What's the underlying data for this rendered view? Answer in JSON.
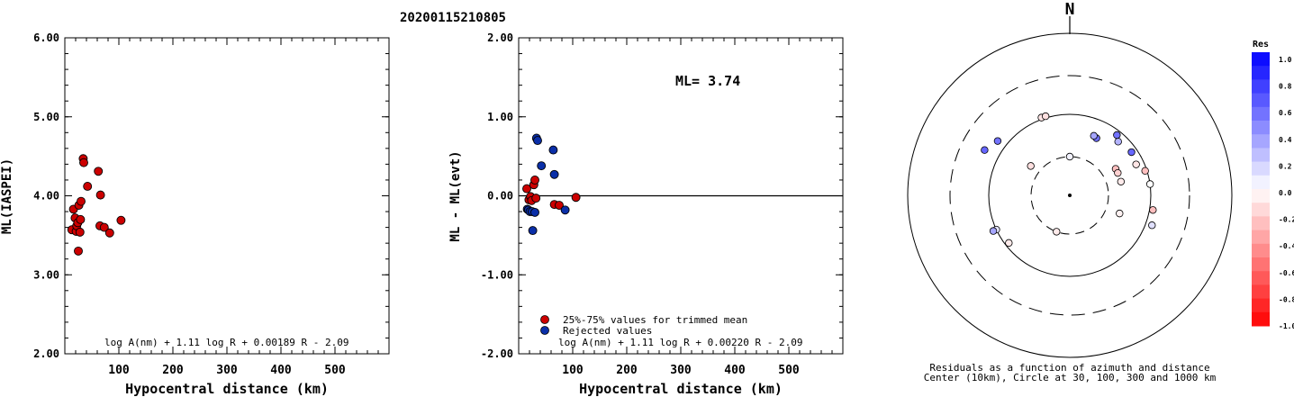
{
  "title": "20200115210805",
  "chart_data": [
    {
      "type": "scatter",
      "ylabel": "ML(IASPEI)",
      "xlabel": "Hypocentral distance (km)",
      "xlim": [
        0,
        600
      ],
      "ylim": [
        2.0,
        6.0
      ],
      "x_ticks": [
        "100",
        "200",
        "300",
        "400",
        "500"
      ],
      "y_ticks": [
        "2.00",
        "3.00",
        "4.00",
        "5.00",
        "6.00"
      ],
      "formula": "log A(nm) + 1.11 log R + 0.00189 R - 2.09",
      "series": [
        {
          "color": "#cc0000",
          "points": [
            [
              13,
              3.57
            ],
            [
              16,
              3.83
            ],
            [
              19,
              3.72
            ],
            [
              21,
              3.55
            ],
            [
              22,
              3.62
            ],
            [
              24,
              3.66
            ],
            [
              25,
              3.3
            ],
            [
              26,
              3.88
            ],
            [
              28,
              3.54
            ],
            [
              29,
              3.7
            ],
            [
              30,
              3.93
            ],
            [
              34,
              4.47
            ],
            [
              35,
              4.42
            ],
            [
              42,
              4.12
            ],
            [
              62,
              4.31
            ],
            [
              65,
              3.62
            ],
            [
              66,
              4.01
            ],
            [
              73,
              3.6
            ],
            [
              83,
              3.53
            ],
            [
              104,
              3.69
            ]
          ]
        }
      ]
    },
    {
      "type": "scatter",
      "ylabel": "ML - ML(evt)",
      "xlabel": "Hypocentral distance (km)",
      "xlim": [
        0,
        600
      ],
      "ylim": [
        -2.0,
        2.0
      ],
      "x_ticks": [
        "100",
        "200",
        "300",
        "400",
        "500"
      ],
      "y_ticks": [
        "-2.00",
        "-1.00",
        "0.00",
        "1.00",
        "2.00"
      ],
      "annotation": "ML= 3.74",
      "reference_line": 0.0,
      "legend": [
        {
          "label": "25%-75% values for trimmed mean",
          "color": "#cc0000"
        },
        {
          "label": "Rejected values",
          "color": "#0a2fa8"
        }
      ],
      "formula": "log A(nm) + 1.11 log R + 0.00220 R - 2.09",
      "series": [
        {
          "name": "25%-75% values for trimmed mean",
          "color": "#cc0000",
          "points": [
            [
              15,
              0.09
            ],
            [
              19,
              -0.05
            ],
            [
              22,
              -0.01
            ],
            [
              24,
              -0.06
            ],
            [
              28,
              0.14
            ],
            [
              30,
              0.2
            ],
            [
              32,
              -0.03
            ],
            [
              66,
              -0.11
            ],
            [
              75,
              -0.12
            ],
            [
              106,
              -0.02
            ]
          ]
        },
        {
          "name": "Rejected values",
          "color": "#0a2fa8",
          "points": [
            [
              16,
              -0.17
            ],
            [
              18,
              -0.18
            ],
            [
              21,
              -0.2
            ],
            [
              25,
              -0.2
            ],
            [
              26,
              -0.44
            ],
            [
              30,
              -0.21
            ],
            [
              33,
              0.73
            ],
            [
              35,
              0.7
            ],
            [
              42,
              0.38
            ],
            [
              64,
              0.58
            ],
            [
              66,
              0.27
            ],
            [
              86,
              -0.18
            ]
          ]
        }
      ]
    },
    {
      "type": "scatter",
      "subtype": "polar",
      "north_label": "N",
      "caption_line1": "Residuals as a function of azimuth and distance",
      "caption_line2": "Center (10km), Circle at 30, 100, 300 and 1000 km",
      "colorbar_title": "Res",
      "colorbar_ticks": [
        "1.0",
        "0.8",
        "0.6",
        "0.4",
        "0.2",
        "0.0",
        "-0.2",
        "-0.4",
        "-0.6",
        "-0.8",
        "-1.0"
      ],
      "rings_km": [
        30,
        100,
        300,
        1000
      ],
      "stations": [
        {
          "az": 340,
          "dist_km": 105,
          "res": -0.1
        },
        {
          "az": 343,
          "dist_km": 105,
          "res": -0.12
        },
        {
          "az": 307,
          "dist_km": 130,
          "res": 0.55
        },
        {
          "az": 298,
          "dist_km": 155,
          "res": 0.6
        },
        {
          "az": 245,
          "dist_km": 100,
          "res": 0.1
        },
        {
          "az": 245,
          "dist_km": 110,
          "res": 0.35
        },
        {
          "az": 232,
          "dist_km": 90,
          "res": -0.08
        },
        {
          "az": 307,
          "dist_km": 40,
          "res": -0.12
        },
        {
          "az": 0,
          "dist_km": 30,
          "res": 0.05
        },
        {
          "az": 200,
          "dist_km": 30,
          "res": -0.08
        },
        {
          "az": 25,
          "dist_km": 60,
          "res": 0.55
        },
        {
          "az": 22,
          "dist_km": 62,
          "res": 0.35
        },
        {
          "az": 42,
          "dist_km": 78,
          "res": 0.3
        },
        {
          "az": 38,
          "dist_km": 88,
          "res": 0.55
        },
        {
          "az": 55,
          "dist_km": 85,
          "res": 0.6
        },
        {
          "az": 60,
          "dist_km": 45,
          "res": -0.25
        },
        {
          "az": 65,
          "dist_km": 45,
          "res": -0.18
        },
        {
          "az": 75,
          "dist_km": 45,
          "res": -0.08
        },
        {
          "az": 110,
          "dist_km": 45,
          "res": -0.05
        },
        {
          "az": 65,
          "dist_km": 80,
          "res": -0.1
        },
        {
          "az": 72,
          "dist_km": 95,
          "res": -0.25
        },
        {
          "az": 82,
          "dist_km": 100,
          "res": 0.0
        },
        {
          "az": 110,
          "dist_km": 120,
          "res": 0.12
        },
        {
          "az": 100,
          "dist_km": 110,
          "res": -0.25
        }
      ]
    }
  ]
}
